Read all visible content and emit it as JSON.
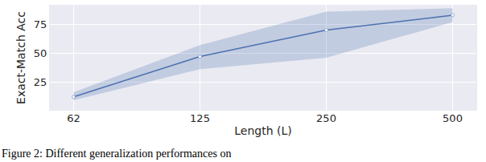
{
  "chart_data": {
    "type": "line",
    "x_label": "Length (L)",
    "y_label": "Exact-Match Acc",
    "categories": [
      "62",
      "125",
      "250",
      "500"
    ],
    "values": [
      12,
      47,
      70,
      83
    ],
    "lower": [
      9,
      36,
      46,
      77
    ],
    "upper": [
      16,
      57,
      86,
      89
    ],
    "color": "#4C72B0",
    "marker": "circle",
    "ylim": [
      0,
      92
    ],
    "yticks": [
      25,
      50,
      75
    ],
    "grid": true,
    "caption": "Figure 2: Different generalization performances on"
  }
}
